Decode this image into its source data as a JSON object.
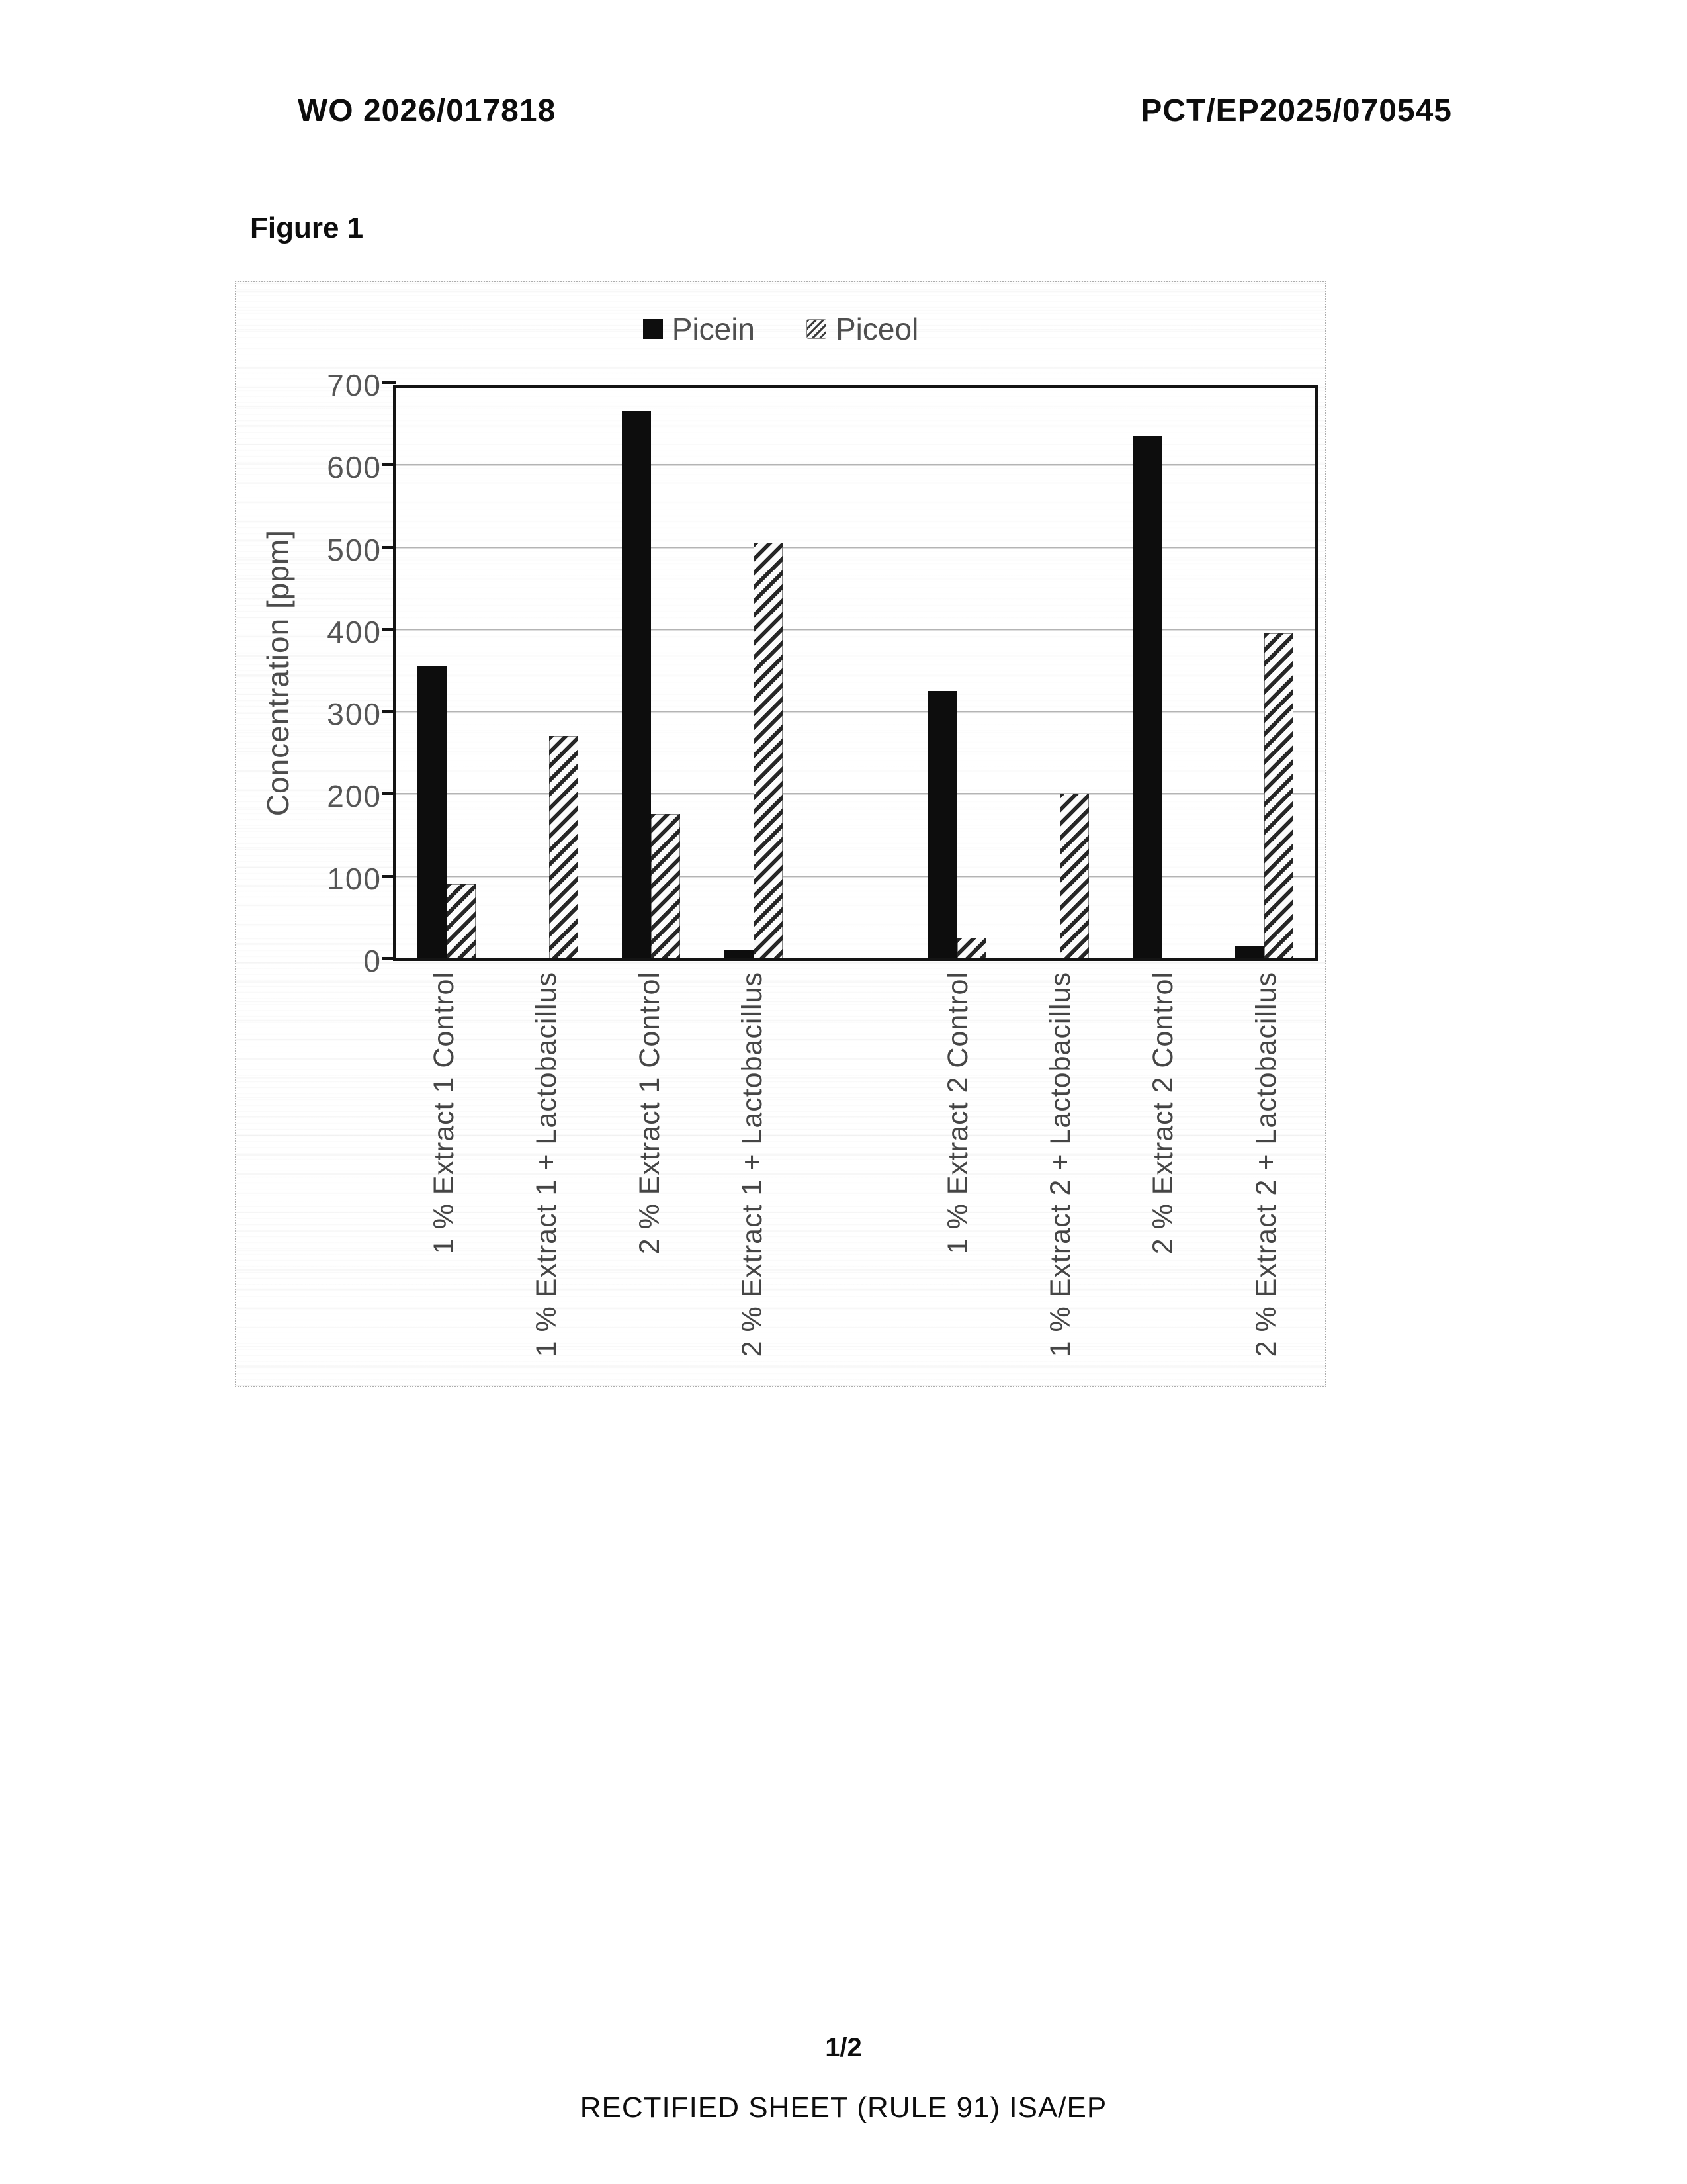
{
  "page": {
    "header_left": "WO 2026/017818",
    "header_right": "PCT/EP2025/070545",
    "figure_label": "Figure 1",
    "footer_page": "1/2",
    "footer_note": "RECTIFIED SHEET (RULE 91) ISA/EP"
  },
  "chart_data": {
    "type": "bar",
    "title": "",
    "xlabel": "",
    "ylabel": "Concentration [ppm]",
    "ylim": [
      0,
      700
    ],
    "yticks": [
      0,
      100,
      200,
      300,
      400,
      500,
      600,
      700
    ],
    "grid": true,
    "legend_position": "top",
    "cluster_gap_after": 4,
    "categories": [
      "1 % Extract 1 Control",
      "1 % Extract 1 + Lactobacillus",
      "2 % Extract 1 Control",
      "2 % Extract 1 + Lactobacillus",
      "1 % Extract 2 Control",
      "1 % Extract 2 + Lactobacillus",
      "2 % Extract 2 Control",
      "2 % Extract 2 + Lactobacillus"
    ],
    "series": [
      {
        "name": "Picein",
        "style": "solid-black",
        "values": [
          355,
          0,
          665,
          10,
          325,
          0,
          635,
          15
        ]
      },
      {
        "name": "Piceol",
        "style": "diagonal-hatch",
        "values": [
          90,
          270,
          175,
          505,
          25,
          200,
          0,
          395
        ]
      }
    ],
    "colors": {
      "picein": "#0d0d0d",
      "piceol_hatch": "#262626",
      "axis": "#141414",
      "gridline": "#b4b4b4",
      "chart_text": "#4f4f4f"
    }
  }
}
